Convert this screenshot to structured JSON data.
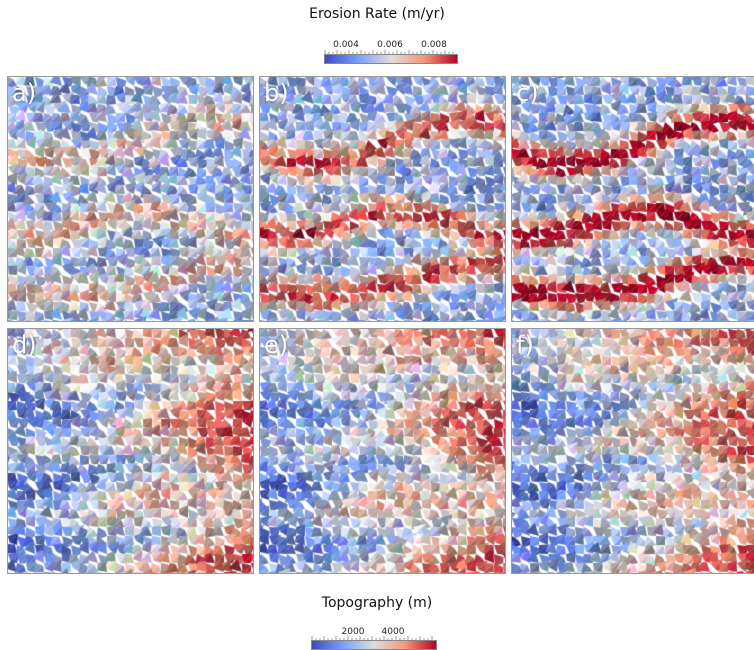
{
  "erosion": {
    "title": "Erosion Rate (m/yr)",
    "colorbar": {
      "tick_labels": [
        "0.004",
        "0.006",
        "0.008"
      ],
      "low_color": "#3b4cc0",
      "high_color": "#b40426"
    }
  },
  "topography": {
    "title": "Topography (m)",
    "colorbar": {
      "tick_labels": [
        "2000",
        "4000"
      ],
      "low_color": "#3b4cc0",
      "high_color": "#b40426"
    }
  },
  "panels": [
    {
      "label": "a)",
      "map": "erosion",
      "level": 0.35
    },
    {
      "label": "b)",
      "map": "erosion",
      "level": 0.65
    },
    {
      "label": "c)",
      "map": "erosion",
      "level": 0.85
    },
    {
      "label": "d)",
      "map": "topography",
      "level": 0.5
    },
    {
      "label": "e)",
      "map": "topography",
      "level": 0.5
    },
    {
      "label": "f)",
      "map": "topography",
      "level": 0.5
    }
  ]
}
